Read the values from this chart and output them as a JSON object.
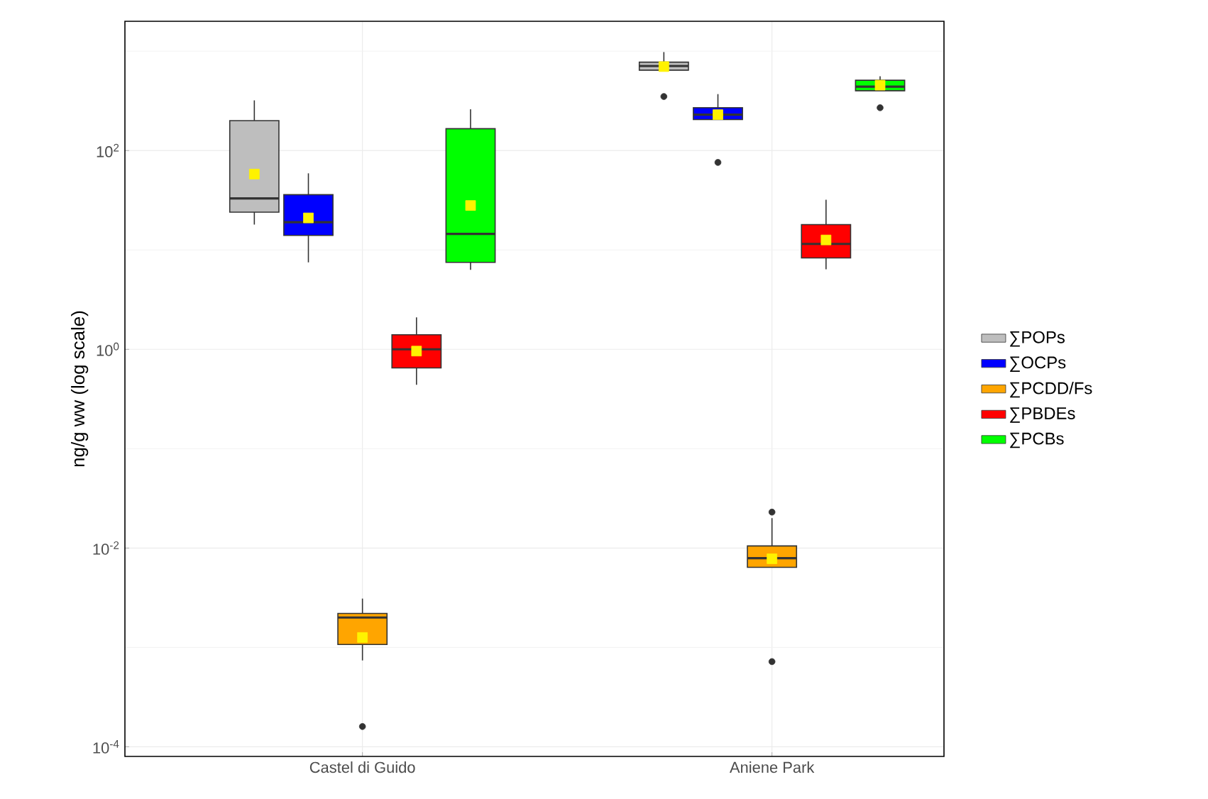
{
  "chart_data": {
    "type": "box",
    "ylabel": "ng/g ww (log scale)",
    "categories": [
      "Castel di Guido",
      "Aniene Park"
    ],
    "log": "y",
    "grid": true,
    "legend": "right",
    "ylim": [
      8e-05,
      2000
    ],
    "yticks": [
      {
        "value": 0.0001,
        "label": "10$^{-4}$"
      },
      {
        "value": 0.001,
        "label": null
      },
      {
        "value": 0.01,
        "label": "10$^{-2}$"
      },
      {
        "value": 0.1,
        "label": null
      },
      {
        "value": 1,
        "label": "10$^{0}$"
      },
      {
        "value": 10,
        "label": null
      },
      {
        "value": 100,
        "label": "10$^{2}$"
      },
      {
        "value": 1000,
        "label": null
      }
    ],
    "series": [
      {
        "name": "∑POPs",
        "color": "#bebebe",
        "boxes": [
          {
            "low": 18,
            "q1": 24,
            "median": 33,
            "q3": 200,
            "high": 320,
            "mean": 58
          },
          {
            "low": 645,
            "q1": 645,
            "median": 710,
            "q3": 775,
            "high": 980,
            "mean": 700,
            "outliers": [
              350
            ]
          }
        ]
      },
      {
        "name": "∑OCPs",
        "color": "#0000ff",
        "boxes": [
          {
            "low": 7.5,
            "q1": 14,
            "median": 19,
            "q3": 36,
            "high": 59,
            "mean": 21
          },
          {
            "low": 205,
            "q1": 205,
            "median": 230,
            "q3": 270,
            "high": 370,
            "mean": 230,
            "outliers": [
              76
            ]
          }
        ]
      },
      {
        "name": "∑PCDD/Fs",
        "color": "#ffa500",
        "boxes": [
          {
            "low": 0.00074,
            "q1": 0.00107,
            "median": 0.002,
            "q3": 0.0022,
            "high": 0.0031,
            "mean": 0.00126,
            "outliers": [
              0.00016
            ]
          },
          {
            "low": 0.0064,
            "q1": 0.0064,
            "median": 0.0079,
            "q3": 0.0105,
            "high": 0.02,
            "mean": 0.0078,
            "outliers": [
              0.023,
              0.00072
            ]
          }
        ]
      },
      {
        "name": "∑PBDEs",
        "color": "#ff0000",
        "boxes": [
          {
            "low": 0.44,
            "q1": 0.65,
            "median": 1.0,
            "q3": 1.4,
            "high": 2.1,
            "mean": 0.96
          },
          {
            "low": 6.4,
            "q1": 8.3,
            "median": 11.5,
            "q3": 18,
            "high": 32,
            "mean": 12.6
          }
        ]
      },
      {
        "name": "∑PCBs",
        "color": "#00ff00",
        "boxes": [
          {
            "low": 6.3,
            "q1": 7.5,
            "median": 14.5,
            "q3": 166,
            "high": 260,
            "mean": 28
          },
          {
            "low": 400,
            "q1": 400,
            "median": 440,
            "q3": 510,
            "high": 560,
            "mean": 455,
            "outliers": [
              270
            ]
          }
        ]
      }
    ]
  }
}
